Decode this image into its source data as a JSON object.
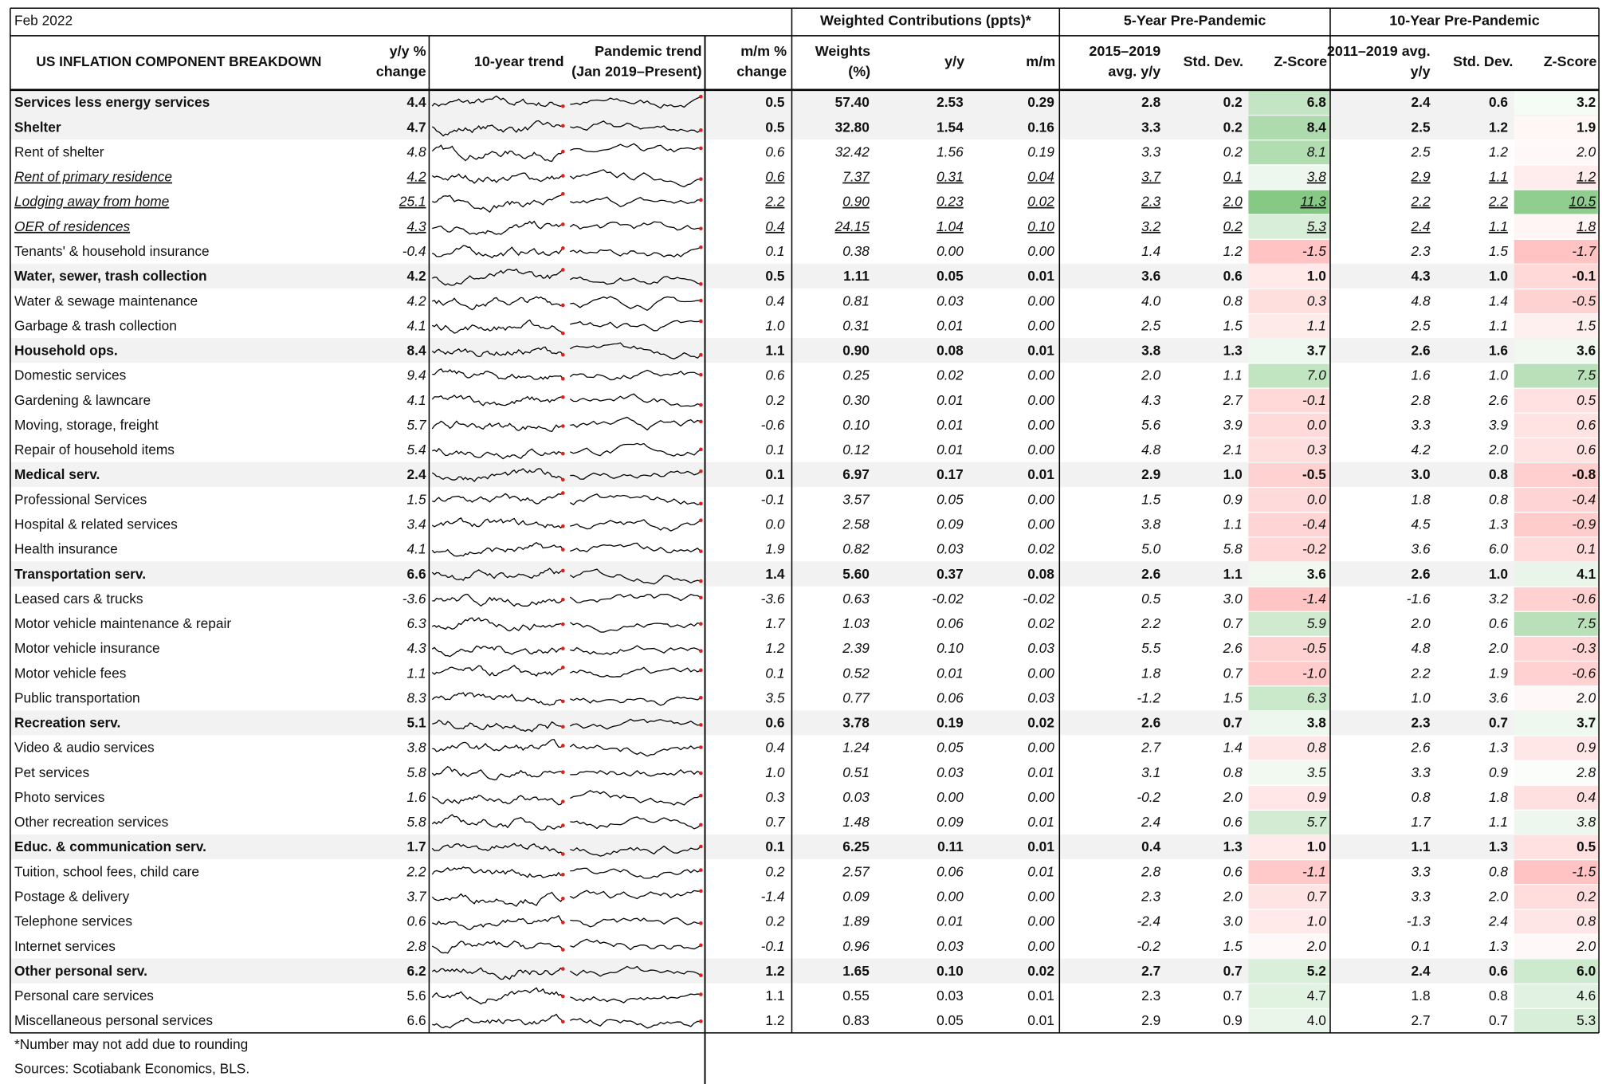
{
  "header": {
    "date": "Feb 2022",
    "groups": [
      "Weighted Contributions (ppts)*",
      "5-Year Pre-Pandemic",
      "10-Year Pre-Pandemic"
    ]
  },
  "table": {
    "columns": [
      [
        "US INFLATION COMPONENT BREAKDOWN"
      ],
      [
        "y/y %",
        "change"
      ],
      [
        "10-year trend"
      ],
      [
        "Pandemic trend",
        "(Jan 2019–Present)"
      ],
      [
        "m/m %",
        "change"
      ],
      [
        "Weights",
        "(%)"
      ],
      [
        "y/y"
      ],
      [
        "m/m"
      ],
      [
        "2015–2019",
        "avg. y/y"
      ],
      [
        "Std. Dev."
      ],
      [
        "Z-Score"
      ],
      [
        "2011–2019 avg.",
        "y/y"
      ],
      [
        "Std. Dev."
      ],
      [
        "Z-Score"
      ]
    ],
    "rows": [
      {
        "style": "bold",
        "cells": [
          "Services less energy services",
          "4.4",
          "0.5",
          "57.40",
          "2.53",
          "0.29",
          "2.8",
          "0.2",
          "6.8",
          "2.4",
          "0.6",
          "3.2"
        ]
      },
      {
        "style": "bold",
        "cells": [
          "Shelter",
          "4.7",
          "0.5",
          "32.80",
          "1.54",
          "0.16",
          "3.3",
          "0.2",
          "8.4",
          "2.5",
          "1.2",
          "1.9"
        ]
      },
      {
        "style": "italic",
        "cells": [
          "Rent of shelter",
          "4.8",
          "0.6",
          "32.42",
          "1.56",
          "0.19",
          "3.3",
          "0.2",
          "8.1",
          "2.5",
          "1.2",
          "2.0"
        ]
      },
      {
        "style": "underline",
        "cells": [
          "Rent of  primary residence",
          "4.2",
          "0.6",
          "7.37",
          "0.31",
          "0.04",
          "3.7",
          "0.1",
          "3.8",
          "2.9",
          "1.1",
          "1.2"
        ]
      },
      {
        "style": "underline",
        "cells": [
          "Lodging away from home",
          "25.1",
          "2.2",
          "0.90",
          "0.23",
          "0.02",
          "2.3",
          "2.0",
          "11.3",
          "2.2",
          "2.2",
          "10.5"
        ]
      },
      {
        "style": "underline",
        "cells": [
          "OER of residences",
          "4.3",
          "0.4",
          "24.15",
          "1.04",
          "0.10",
          "3.2",
          "0.2",
          "5.3",
          "2.4",
          "1.1",
          "1.8"
        ]
      },
      {
        "style": "italic",
        "cells": [
          "Tenants' & household insurance",
          "-0.4",
          "0.1",
          "0.38",
          "0.00",
          "0.00",
          "1.4",
          "1.2",
          "-1.5",
          "2.3",
          "1.5",
          "-1.7"
        ]
      },
      {
        "style": "bold",
        "cells": [
          "Water, sewer, trash collection",
          "4.2",
          "0.5",
          "1.11",
          "0.05",
          "0.01",
          "3.6",
          "0.6",
          "1.0",
          "4.3",
          "1.0",
          "-0.1"
        ]
      },
      {
        "style": "italic",
        "cells": [
          "Water & sewage maintenance",
          "4.2",
          "0.4",
          "0.81",
          "0.03",
          "0.00",
          "4.0",
          "0.8",
          "0.3",
          "4.8",
          "1.4",
          "-0.5"
        ]
      },
      {
        "style": "italic",
        "cells": [
          "Garbage & trash collection",
          "4.1",
          "1.0",
          "0.31",
          "0.01",
          "0.00",
          "2.5",
          "1.5",
          "1.1",
          "2.5",
          "1.1",
          "1.5"
        ]
      },
      {
        "style": "bold",
        "cells": [
          "Household ops.",
          "8.4",
          "1.1",
          "0.90",
          "0.08",
          "0.01",
          "3.8",
          "1.3",
          "3.7",
          "2.6",
          "1.6",
          "3.6"
        ]
      },
      {
        "style": "italic",
        "cells": [
          "Domestic services",
          "9.4",
          "0.6",
          "0.25",
          "0.02",
          "0.00",
          "2.0",
          "1.1",
          "7.0",
          "1.6",
          "1.0",
          "7.5"
        ]
      },
      {
        "style": "italic",
        "cells": [
          "Gardening & lawncare",
          "4.1",
          "0.2",
          "0.30",
          "0.01",
          "0.00",
          "4.3",
          "2.7",
          "-0.1",
          "2.8",
          "2.6",
          "0.5"
        ]
      },
      {
        "style": "italic",
        "cells": [
          "Moving, storage, freight",
          "5.7",
          "-0.6",
          "0.10",
          "0.01",
          "0.00",
          "5.6",
          "3.9",
          "0.0",
          "3.3",
          "3.9",
          "0.6"
        ]
      },
      {
        "style": "italic",
        "cells": [
          "Repair of household items",
          "5.4",
          "0.1",
          "0.12",
          "0.01",
          "0.00",
          "4.8",
          "2.1",
          "0.3",
          "4.2",
          "2.0",
          "0.6"
        ]
      },
      {
        "style": "bold",
        "cells": [
          "Medical serv.",
          "2.4",
          "0.1",
          "6.97",
          "0.17",
          "0.01",
          "2.9",
          "1.0",
          "-0.5",
          "3.0",
          "0.8",
          "-0.8"
        ]
      },
      {
        "style": "italic",
        "cells": [
          "Professional Services",
          "1.5",
          "-0.1",
          "3.57",
          "0.05",
          "0.00",
          "1.5",
          "0.9",
          "0.0",
          "1.8",
          "0.8",
          "-0.4"
        ]
      },
      {
        "style": "italic",
        "cells": [
          "Hospital & related services",
          "3.4",
          "0.0",
          "2.58",
          "0.09",
          "0.00",
          "3.8",
          "1.1",
          "-0.4",
          "4.5",
          "1.3",
          "-0.9"
        ]
      },
      {
        "style": "italic",
        "cells": [
          "Health insurance",
          "4.1",
          "1.9",
          "0.82",
          "0.03",
          "0.02",
          "5.0",
          "5.8",
          "-0.2",
          "3.6",
          "6.0",
          "0.1"
        ]
      },
      {
        "style": "bold",
        "cells": [
          "Transportation serv.",
          "6.6",
          "1.4",
          "5.60",
          "0.37",
          "0.08",
          "2.6",
          "1.1",
          "3.6",
          "2.6",
          "1.0",
          "4.1"
        ]
      },
      {
        "style": "italic",
        "cells": [
          "Leased cars & trucks",
          "-3.6",
          "-3.6",
          "0.63",
          "-0.02",
          "-0.02",
          "0.5",
          "3.0",
          "-1.4",
          "-1.6",
          "3.2",
          "-0.6"
        ]
      },
      {
        "style": "italic",
        "cells": [
          "Motor vehicle maintenance & repair",
          "6.3",
          "1.7",
          "1.03",
          "0.06",
          "0.02",
          "2.2",
          "0.7",
          "5.9",
          "2.0",
          "0.6",
          "7.5"
        ]
      },
      {
        "style": "italic",
        "cells": [
          "Motor vehicle insurance",
          "4.3",
          "1.2",
          "2.39",
          "0.10",
          "0.03",
          "5.5",
          "2.6",
          "-0.5",
          "4.8",
          "2.0",
          "-0.3"
        ]
      },
      {
        "style": "italic",
        "cells": [
          "Motor vehicle fees",
          "1.1",
          "0.1",
          "0.52",
          "0.01",
          "0.00",
          "1.8",
          "0.7",
          "-1.0",
          "2.2",
          "1.9",
          "-0.6"
        ]
      },
      {
        "style": "italic",
        "cells": [
          "Public transportation",
          "8.3",
          "3.5",
          "0.77",
          "0.06",
          "0.03",
          "-1.2",
          "1.5",
          "6.3",
          "1.0",
          "3.6",
          "2.0"
        ]
      },
      {
        "style": "bold",
        "cells": [
          "Recreation serv.",
          "5.1",
          "0.6",
          "3.78",
          "0.19",
          "0.02",
          "2.6",
          "0.7",
          "3.8",
          "2.3",
          "0.7",
          "3.7"
        ]
      },
      {
        "style": "italic",
        "cells": [
          "Video & audio services",
          "3.8",
          "0.4",
          "1.24",
          "0.05",
          "0.00",
          "2.7",
          "1.4",
          "0.8",
          "2.6",
          "1.3",
          "0.9"
        ]
      },
      {
        "style": "italic",
        "cells": [
          "Pet services",
          "5.8",
          "1.0",
          "0.51",
          "0.03",
          "0.01",
          "3.1",
          "0.8",
          "3.5",
          "3.3",
          "0.9",
          "2.8"
        ]
      },
      {
        "style": "italic",
        "cells": [
          "Photo services",
          "1.6",
          "0.3",
          "0.03",
          "0.00",
          "0.00",
          "-0.2",
          "2.0",
          "0.9",
          "0.8",
          "1.8",
          "0.4"
        ]
      },
      {
        "style": "italic",
        "cells": [
          "Other recreation services",
          "5.8",
          "0.7",
          "1.48",
          "0.09",
          "0.01",
          "2.4",
          "0.6",
          "5.7",
          "1.7",
          "1.1",
          "3.8"
        ]
      },
      {
        "style": "bold",
        "cells": [
          "Educ. & communication serv.",
          "1.7",
          "0.1",
          "6.25",
          "0.11",
          "0.01",
          "0.4",
          "1.3",
          "1.0",
          "1.1",
          "1.3",
          "0.5"
        ]
      },
      {
        "style": "italic",
        "cells": [
          "Tuition, school fees, child care",
          "2.2",
          "0.2",
          "2.57",
          "0.06",
          "0.01",
          "2.8",
          "0.6",
          "-1.1",
          "3.3",
          "0.8",
          "-1.5"
        ]
      },
      {
        "style": "italic",
        "cells": [
          "Postage & delivery",
          "3.7",
          "-1.4",
          "0.09",
          "0.00",
          "0.00",
          "2.3",
          "2.0",
          "0.7",
          "3.3",
          "2.0",
          "0.2"
        ]
      },
      {
        "style": "italic",
        "cells": [
          "Telephone services",
          "0.6",
          "0.2",
          "1.89",
          "0.01",
          "0.00",
          "-2.4",
          "3.0",
          "1.0",
          "-1.3",
          "2.4",
          "0.8"
        ]
      },
      {
        "style": "italic",
        "cells": [
          "Internet services",
          "2.8",
          "-0.1",
          "0.96",
          "0.03",
          "0.00",
          "-0.2",
          "1.5",
          "2.0",
          "0.1",
          "1.3",
          "2.0"
        ]
      },
      {
        "style": "bold",
        "cells": [
          "Other personal serv.",
          "6.2",
          "1.2",
          "1.65",
          "0.10",
          "0.02",
          "2.7",
          "0.7",
          "5.2",
          "2.4",
          "0.6",
          "6.0"
        ]
      },
      {
        "style": "plain",
        "cells": [
          "Personal care services",
          "5.6",
          "1.1",
          "0.55",
          "0.03",
          "0.01",
          "2.3",
          "0.7",
          "4.7",
          "1.8",
          "0.8",
          "4.6"
        ]
      },
      {
        "style": "plain",
        "cells": [
          "Miscellaneous personal services",
          "6.6",
          "1.2",
          "0.83",
          "0.05",
          "0.01",
          "2.9",
          "0.9",
          "4.0",
          "2.7",
          "0.7",
          "5.3"
        ]
      }
    ]
  },
  "footnotes": [
    "*Number may not add due to rounding",
    "Sources: Scotiabank Economics, BLS."
  ]
}
